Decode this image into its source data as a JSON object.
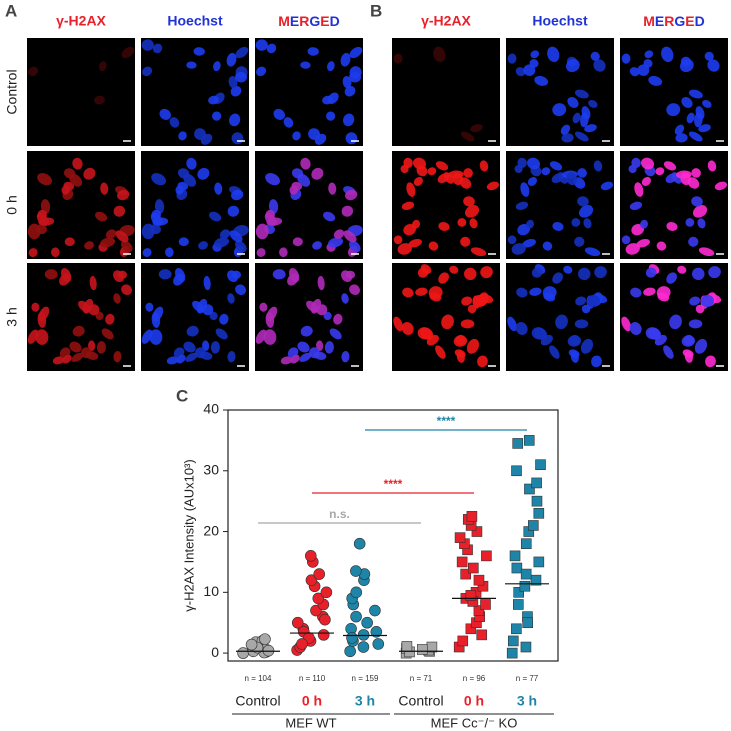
{
  "panels": [
    {
      "label": "A",
      "columns": [
        {
          "label": "γ-H2AX",
          "color": "#e8202a"
        },
        {
          "label": "Hoechst",
          "color": "#2233d6"
        },
        {
          "label": "MERGED",
          "letter_colors": [
            "#e8202a",
            "#2233d6",
            "#e8202a",
            "#2233d6",
            "#e8202a",
            "#2233d6"
          ]
        }
      ],
      "rows": [
        "Control",
        "0 h",
        "3 h"
      ]
    },
    {
      "label": "B",
      "columns": [
        {
          "label": "γ-H2AX",
          "color": "#e8202a"
        },
        {
          "label": "Hoechst",
          "color": "#2233d6"
        },
        {
          "label": "MERGED",
          "letter_colors": [
            "#e8202a",
            "#2233d6",
            "#e8202a",
            "#2233d6",
            "#e8202a",
            "#2233d6"
          ]
        }
      ]
    }
  ],
  "chart_data": {
    "type": "scatter",
    "panel_label": "C",
    "y_label": "γ-H2AX Intensity (AUx10³)",
    "ylim": [
      -1.3,
      40
    ],
    "yticks": [
      0,
      10,
      20,
      30,
      40
    ],
    "groups": [
      {
        "label": "Control",
        "n_label": "n = 104",
        "color": "#a8a8a8",
        "label_color": "#222222",
        "marker": "circle",
        "median": 0.3,
        "values": [
          0,
          0.2,
          0.5,
          0.8,
          1,
          1.2,
          1.5,
          1.8,
          2,
          0.3,
          0.6,
          0.1,
          0.9,
          1.4,
          2.3,
          0.4
        ]
      },
      {
        "label": "0 h",
        "n_label": "n = 110",
        "color": "#e8202a",
        "label_color": "#e8202a",
        "marker": "circle",
        "median": 3.3,
        "values": [
          0.5,
          1,
          2,
          3,
          4,
          5,
          6,
          7,
          8,
          9,
          10,
          11,
          12,
          13,
          15,
          16,
          3.5,
          2.5,
          5.5,
          1.5
        ]
      },
      {
        "label": "3 h",
        "n_label": "n = 159",
        "color": "#1e84a8",
        "label_color": "#1e84a8",
        "marker": "circle",
        "median": 2.9,
        "values": [
          0.3,
          1,
          2,
          3,
          4,
          5,
          6,
          7,
          8,
          9,
          10,
          12,
          13,
          13.5,
          18,
          2.5,
          3.5,
          1.5
        ]
      },
      {
        "label": "Control",
        "n_label": "n = 71",
        "color": "#a8a8a8",
        "label_color": "#222222",
        "marker": "square",
        "median": 0.3,
        "values": [
          0,
          0.3,
          0.5,
          0.8,
          1,
          0.2,
          0.6,
          1.1
        ]
      },
      {
        "label": "0 h",
        "n_label": "n = 96",
        "color": "#e8202a",
        "label_color": "#e8202a",
        "marker": "square",
        "median": 9,
        "values": [
          1,
          2,
          4,
          5,
          6,
          7,
          8,
          9,
          10,
          11,
          12,
          13,
          14,
          15,
          16,
          17,
          18,
          19,
          20,
          21,
          22,
          22.5,
          3,
          8.5,
          9.5
        ]
      },
      {
        "label": "3 h",
        "n_label": "n = 77",
        "color": "#1e84a8",
        "label_color": "#1e84a8",
        "marker": "square",
        "median": 11.4,
        "values": [
          0,
          1,
          2,
          4,
          6,
          8,
          10,
          11,
          12,
          14,
          15,
          16,
          18,
          20,
          21,
          23,
          25,
          27,
          28,
          30,
          31,
          34.5,
          35,
          5,
          13
        ]
      }
    ],
    "group_headers": [
      "MEF WT",
      "MEF Cc⁻/⁻ KO"
    ],
    "significance": [
      {
        "label": "n.s.",
        "color": "#a8a8a8"
      },
      {
        "label": "****",
        "color": "#e8202a"
      },
      {
        "label": "****",
        "color": "#1e84a8"
      }
    ]
  }
}
